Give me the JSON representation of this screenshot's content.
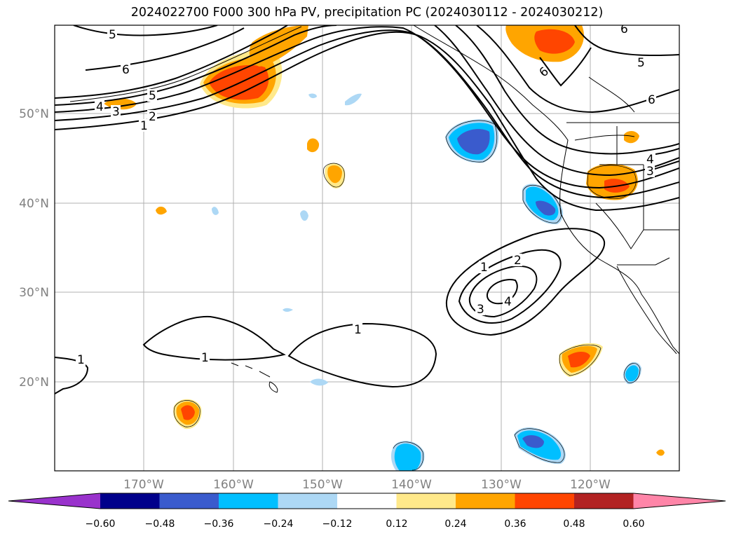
{
  "title": "2024022700 F000 300 hPa PV, precipitation PC (2024030112 - 2024030212)",
  "map": {
    "lat_labels": [
      "50°N",
      "40°N",
      "30°N",
      "20°N"
    ],
    "lon_labels": [
      "170°W",
      "160°W",
      "150°W",
      "140°W",
      "130°W",
      "120°W"
    ]
  },
  "contour_labels": [
    "5",
    "6",
    "6",
    "5",
    "4",
    "3",
    "2",
    "1",
    "6",
    "5",
    "6",
    "4",
    "3",
    "1",
    "2",
    "4",
    "3",
    "1",
    "1",
    "1"
  ],
  "colorbar": {
    "colors": [
      "#9932cc",
      "#00008b",
      "#3a5bcd",
      "#00bfff",
      "#add8f5",
      "#ffffff",
      "#ffe98a",
      "#ffa500",
      "#ff4500",
      "#b22222",
      "#ff85a8"
    ],
    "labels": [
      "−0.60",
      "−0.48",
      "−0.36",
      "−0.24",
      "−0.12",
      "0.12",
      "0.24",
      "0.36",
      "0.48",
      "0.60"
    ]
  }
}
